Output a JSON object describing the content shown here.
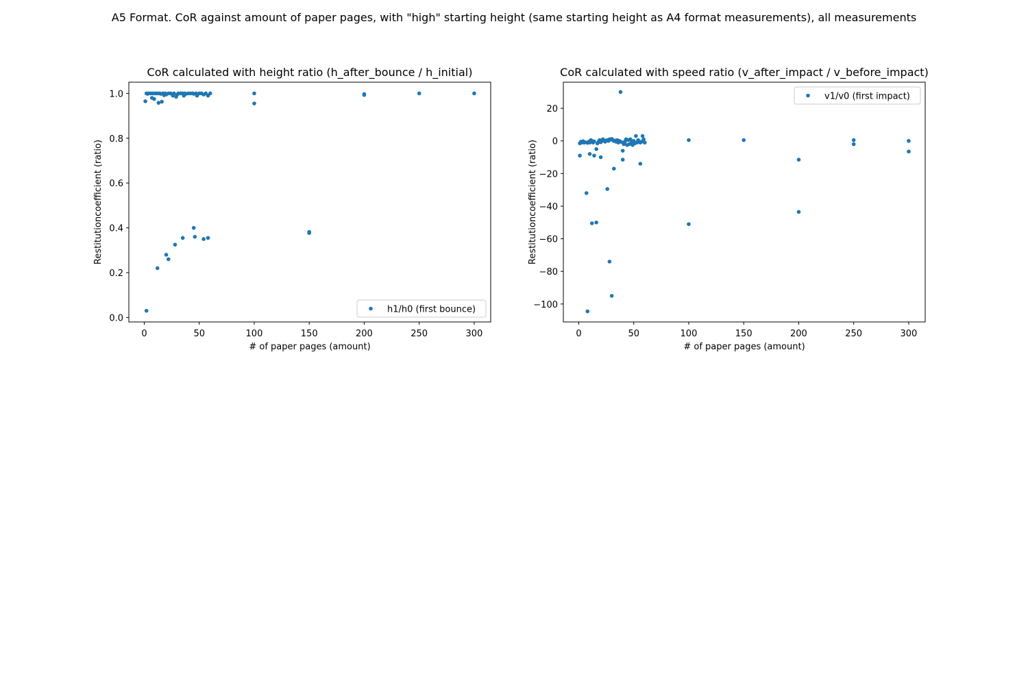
{
  "figure": {
    "suptitle": "A5 Format. CoR against amount of paper pages, with \"high\" starting height (same starting height as A4 format measurements), all measurements"
  },
  "colors": {
    "marker": "#1f77b4",
    "axis": "#000000",
    "background": "#ffffff"
  },
  "chart_data": [
    {
      "type": "scatter",
      "title": "CoR calculated with height ratio (h_after_bounce / h_initial)",
      "xlabel": "# of paper pages (amount)",
      "ylabel": "Restitutioncoefficient (ratio)",
      "xlim": [
        -14,
        315
      ],
      "ylim": [
        -0.02,
        1.05
      ],
      "xticks": [
        0,
        50,
        100,
        150,
        200,
        250,
        300
      ],
      "yticks": [
        0.0,
        0.2,
        0.4,
        0.6,
        0.8,
        1.0
      ],
      "ytick_labels": [
        "0.0",
        "0.2",
        "0.4",
        "0.6",
        "0.8",
        "1.0"
      ],
      "grid": false,
      "legend_position": "lower-right",
      "series": [
        {
          "name": "h1/h0 (first bounce)",
          "points": [
            [
              1,
              0.965
            ],
            [
              2,
              1.0
            ],
            [
              3,
              0.998
            ],
            [
              4,
              1.0
            ],
            [
              6,
              1.0
            ],
            [
              7,
              0.98
            ],
            [
              8,
              1.0
            ],
            [
              9,
              0.975
            ],
            [
              10,
              1.0
            ],
            [
              12,
              1.0
            ],
            [
              13,
              0.958
            ],
            [
              14,
              1.0
            ],
            [
              15,
              0.998
            ],
            [
              16,
              0.963
            ],
            [
              17,
              1.0
            ],
            [
              18,
              0.992
            ],
            [
              19,
              1.0
            ],
            [
              20,
              0.995
            ],
            [
              22,
              1.0
            ],
            [
              24,
              1.0
            ],
            [
              26,
              0.99
            ],
            [
              27,
              1.0
            ],
            [
              29,
              0.985
            ],
            [
              30,
              0.995
            ],
            [
              31,
              1.0
            ],
            [
              33,
              1.0
            ],
            [
              35,
              1.0
            ],
            [
              36,
              0.99
            ],
            [
              37,
              1.0
            ],
            [
              38,
              0.998
            ],
            [
              40,
              1.0
            ],
            [
              42,
              1.0
            ],
            [
              44,
              1.0
            ],
            [
              45,
              0.998
            ],
            [
              47,
              1.0
            ],
            [
              48,
              0.99
            ],
            [
              50,
              1.0
            ],
            [
              52,
              1.0
            ],
            [
              54,
              0.995
            ],
            [
              56,
              1.0
            ],
            [
              58,
              0.99
            ],
            [
              60,
              1.0
            ],
            [
              100,
              1.0
            ],
            [
              100,
              0.955
            ],
            [
              200,
              0.997
            ],
            [
              200,
              0.993
            ],
            [
              250,
              1.0
            ],
            [
              300,
              1.0
            ],
            [
              2,
              0.03
            ],
            [
              12,
              0.22
            ],
            [
              20,
              0.28
            ],
            [
              22,
              0.26
            ],
            [
              28,
              0.325
            ],
            [
              35,
              0.355
            ],
            [
              45,
              0.4
            ],
            [
              46,
              0.36
            ],
            [
              54,
              0.35
            ],
            [
              58,
              0.355
            ],
            [
              150,
              0.382
            ],
            [
              150,
              0.377
            ]
          ]
        }
      ]
    },
    {
      "type": "scatter",
      "title": "CoR calculated with speed ratio (v_after_impact / v_before_impact)",
      "xlabel": "# of paper pages (amount)",
      "ylabel": "Restitutioncoefficient (ratio)",
      "xlim": [
        -14,
        315
      ],
      "ylim": [
        -111,
        36
      ],
      "xticks": [
        0,
        50,
        100,
        150,
        200,
        250,
        300
      ],
      "yticks": [
        20,
        0,
        -20,
        -40,
        -60,
        -80,
        -100
      ],
      "ytick_labels": [
        "20",
        "0",
        "−20",
        "−40",
        "−60",
        "−80",
        "−100"
      ],
      "grid": false,
      "legend_position": "upper-right",
      "series": [
        {
          "name": "v1/v0 (first impact)",
          "points": [
            [
              1,
              -1.5
            ],
            [
              2,
              -0.5
            ],
            [
              3,
              -1
            ],
            [
              4,
              -0.2
            ],
            [
              5,
              -1
            ],
            [
              6,
              -0.8
            ],
            [
              8,
              -1.2
            ],
            [
              9,
              -0.5
            ],
            [
              10,
              -1
            ],
            [
              11,
              0.5
            ],
            [
              12,
              0
            ],
            [
              13,
              -1
            ],
            [
              14,
              -0.3
            ],
            [
              17,
              -1.5
            ],
            [
              18,
              -0.5
            ],
            [
              19,
              0.5
            ],
            [
              20,
              -0.8
            ],
            [
              21,
              0
            ],
            [
              22,
              1
            ],
            [
              23,
              0.2
            ],
            [
              24,
              -0.5
            ],
            [
              25,
              0.3
            ],
            [
              26,
              0.5
            ],
            [
              27,
              0
            ],
            [
              28,
              1
            ],
            [
              29,
              0.8
            ],
            [
              30,
              1.2
            ],
            [
              31,
              0.5
            ],
            [
              32,
              0
            ],
            [
              33,
              0.2
            ],
            [
              34,
              -0.5
            ],
            [
              35,
              0.5
            ],
            [
              36,
              -1
            ],
            [
              37,
              0
            ],
            [
              38,
              -0.5
            ],
            [
              40,
              -1
            ],
            [
              41,
              -2
            ],
            [
              42,
              -0.5
            ],
            [
              43,
              1
            ],
            [
              44,
              -2.5
            ],
            [
              45,
              0.5
            ],
            [
              46,
              -2
            ],
            [
              47,
              1
            ],
            [
              48,
              -1
            ],
            [
              49,
              -2.5
            ],
            [
              50,
              0
            ],
            [
              51,
              -1.5
            ],
            [
              52,
              3
            ],
            [
              53,
              -1
            ],
            [
              54,
              0.5
            ],
            [
              56,
              -1
            ],
            [
              57,
              -0.5
            ],
            [
              58,
              3
            ],
            [
              59,
              1
            ],
            [
              60,
              -1
            ],
            [
              100,
              0.5
            ],
            [
              150,
              0.5
            ],
            [
              250,
              0.5
            ],
            [
              250,
              -2
            ],
            [
              300,
              0
            ],
            [
              1,
              -9
            ],
            [
              7,
              -32
            ],
            [
              8,
              -104.5
            ],
            [
              10,
              -8
            ],
            [
              12,
              -50.5
            ],
            [
              14,
              -9
            ],
            [
              16,
              -5
            ],
            [
              16,
              -50
            ],
            [
              20,
              -10
            ],
            [
              26,
              -29.5
            ],
            [
              28,
              -74
            ],
            [
              30,
              -95
            ],
            [
              32,
              -17
            ],
            [
              38,
              30
            ],
            [
              40,
              -6
            ],
            [
              40,
              -11.5
            ],
            [
              56,
              -14
            ],
            [
              100,
              -51
            ],
            [
              200,
              -11.5
            ],
            [
              200,
              -43.5
            ],
            [
              300,
              -6.5
            ]
          ]
        }
      ]
    }
  ]
}
